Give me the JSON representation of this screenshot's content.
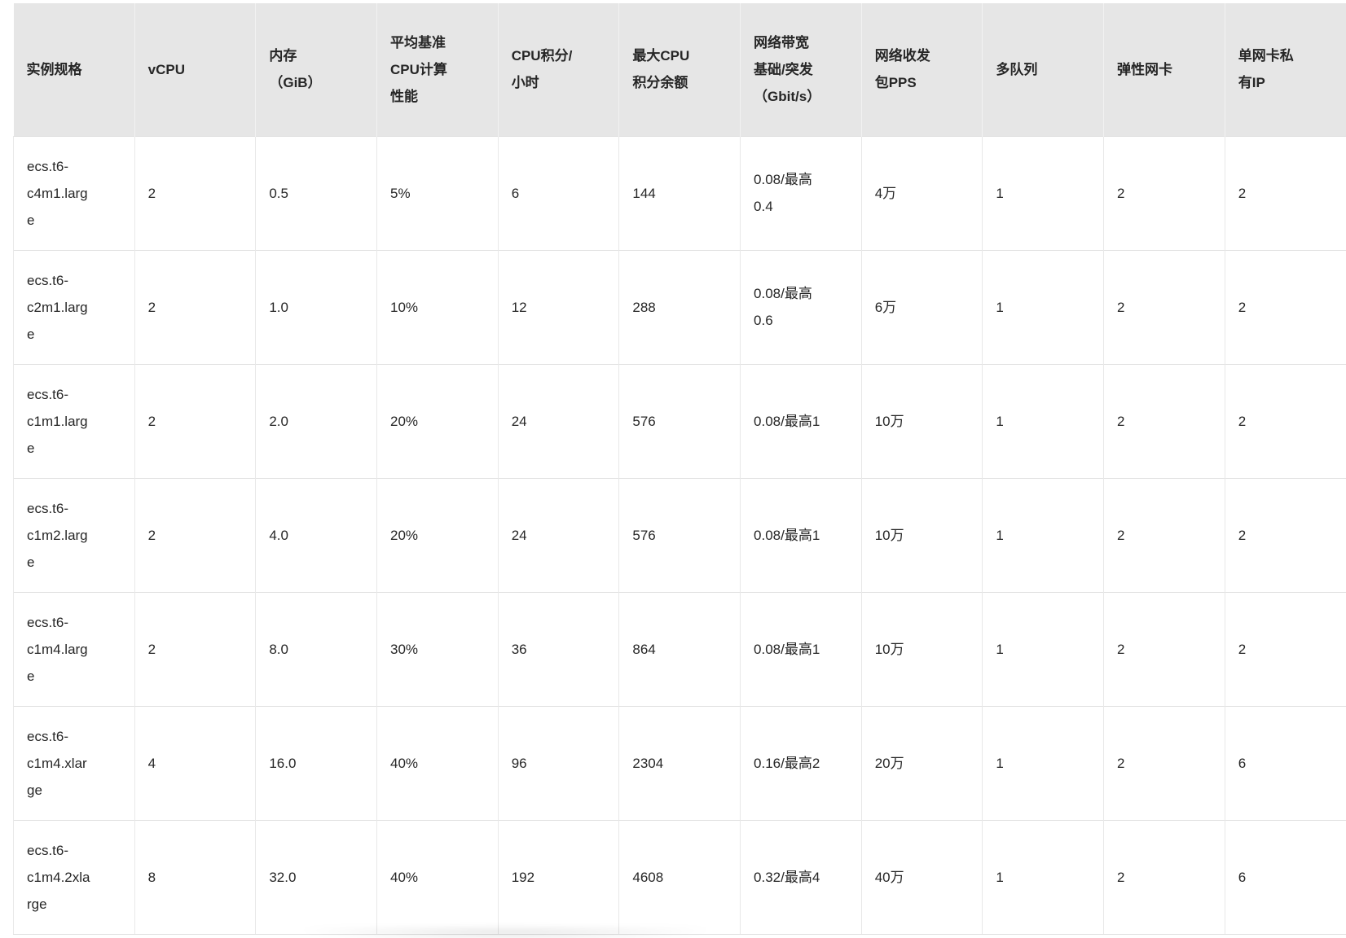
{
  "colors": {
    "header_bg": "#e6e6e6",
    "header_divider": "#f2f2f2",
    "border_v": "#e8e8e8",
    "border_h": "#e0e0e0",
    "text_color": "#262626",
    "page_bg": "#ffffff"
  },
  "table": {
    "columns": [
      {
        "key": "spec",
        "label": "实例规格"
      },
      {
        "key": "vcpu",
        "label": "vCPU"
      },
      {
        "key": "memory",
        "label": "内存（GiB）"
      },
      {
        "key": "baseline",
        "label": "平均基准CPU计算性能"
      },
      {
        "key": "credits",
        "label": "CPU积分/小时"
      },
      {
        "key": "max-credits",
        "label": "最大CPU积分余额"
      },
      {
        "key": "bandwidth",
        "label": "网络带宽基础/突发（Gbit/s）"
      },
      {
        "key": "pps",
        "label": "网络收发包PPS"
      },
      {
        "key": "queues",
        "label": "多队列"
      },
      {
        "key": "enis",
        "label": "弹性网卡"
      },
      {
        "key": "private-ips",
        "label": "单网卡私有IP"
      }
    ],
    "rows": [
      [
        "ecs.t6-c4m1.large",
        "2",
        "0.5",
        "5%",
        "6",
        "144",
        "0.08/最高0.4",
        "4万",
        "1",
        "2",
        "2"
      ],
      [
        "ecs.t6-c2m1.large",
        "2",
        "1.0",
        "10%",
        "12",
        "288",
        "0.08/最高0.6",
        "6万",
        "1",
        "2",
        "2"
      ],
      [
        "ecs.t6-c1m1.large",
        "2",
        "2.0",
        "20%",
        "24",
        "576",
        "0.08/最高1",
        "10万",
        "1",
        "2",
        "2"
      ],
      [
        "ecs.t6-c1m2.large",
        "2",
        "4.0",
        "20%",
        "24",
        "576",
        "0.08/最高1",
        "10万",
        "1",
        "2",
        "2"
      ],
      [
        "ecs.t6-c1m4.large",
        "2",
        "8.0",
        "30%",
        "36",
        "864",
        "0.08/最高1",
        "10万",
        "1",
        "2",
        "2"
      ],
      [
        "ecs.t6-c1m4.xlarge",
        "4",
        "16.0",
        "40%",
        "96",
        "2304",
        "0.16/最高2",
        "20万",
        "1",
        "2",
        "6"
      ],
      [
        "ecs.t6-c1m4.2xlarge",
        "8",
        "32.0",
        "40%",
        "192",
        "4608",
        "0.32/最高4",
        "40万",
        "1",
        "2",
        "6"
      ]
    ]
  }
}
